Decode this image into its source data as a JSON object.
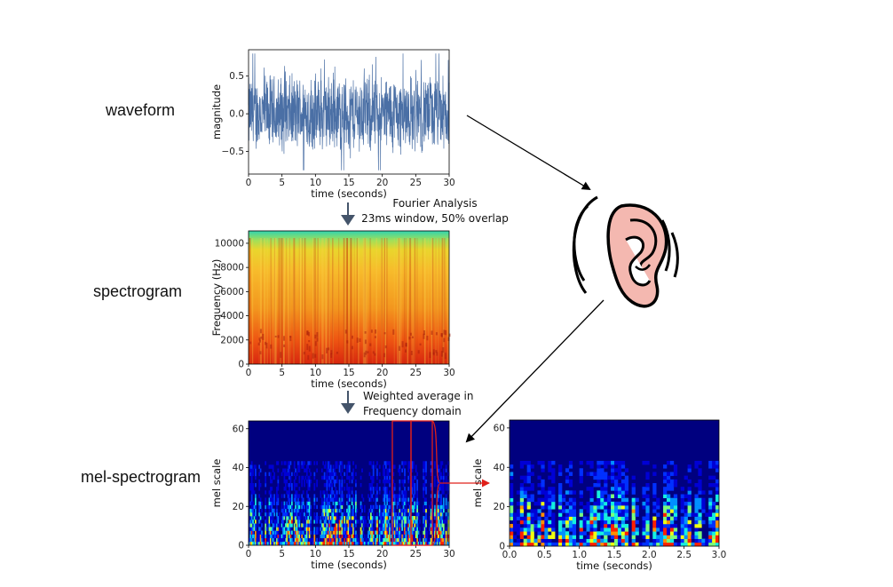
{
  "stage_labels": {
    "waveform": "waveform",
    "spectrogram": "spectrogram",
    "mel": "mel-spectrogram"
  },
  "annotations": {
    "fourier_1": "Fourier Analysis",
    "fourier_2": "23ms window, 50% overlap",
    "weighted_1": "Weighted average in",
    "weighted_2": "Frequency domain"
  },
  "colors": {
    "wave": "#4a6fa5",
    "arrow_dark": "#44546a",
    "highlight": "#e0201a"
  },
  "chart_data": [
    {
      "type": "line",
      "name_hint": "waveform",
      "xlabel": "time (seconds)",
      "ylabel": "magnitude",
      "xlim": [
        0,
        30
      ],
      "ylim": [
        -0.8,
        0.85
      ],
      "xticks": [
        0,
        5,
        10,
        15,
        20,
        25,
        30
      ],
      "yticks": [
        0.5,
        0.0,
        -0.5
      ],
      "ytick_labels": [
        "0.5",
        "0.0",
        "−0.5"
      ],
      "description_values": {
        "amplitude_range": [
          -0.75,
          0.75
        ]
      }
    },
    {
      "type": "heatmap",
      "name_hint": "spectrogram",
      "xlabel": "time (seconds)",
      "ylabel": "Frequency (Hz)",
      "xlim": [
        0,
        30
      ],
      "ylim": [
        0,
        11025
      ],
      "xticks": [
        0,
        5,
        10,
        15,
        20,
        25,
        30
      ],
      "yticks": [
        0,
        2000,
        4000,
        6000,
        8000,
        10000
      ]
    },
    {
      "type": "heatmap",
      "name_hint": "mel-spectrogram-full",
      "xlabel": "time (seconds)",
      "ylabel": "mel scale",
      "xlim": [
        0,
        30
      ],
      "ylim": [
        0,
        64
      ],
      "xticks": [
        0,
        5,
        10,
        15,
        20,
        25,
        30
      ],
      "yticks": [
        0,
        20,
        40,
        60
      ]
    },
    {
      "type": "heatmap",
      "name_hint": "mel-spectrogram-zoom",
      "xlabel": "time (seconds)",
      "ylabel": "mel scale",
      "xlim": [
        0,
        3
      ],
      "ylim": [
        0,
        64
      ],
      "xticks": [
        0.0,
        0.5,
        1.0,
        1.5,
        2.0,
        2.5,
        3.0
      ],
      "xtick_labels": [
        "0.0",
        "0.5",
        "1.0",
        "1.5",
        "2.0",
        "2.5",
        "3.0"
      ],
      "yticks": [
        0,
        20,
        40,
        60
      ]
    }
  ]
}
